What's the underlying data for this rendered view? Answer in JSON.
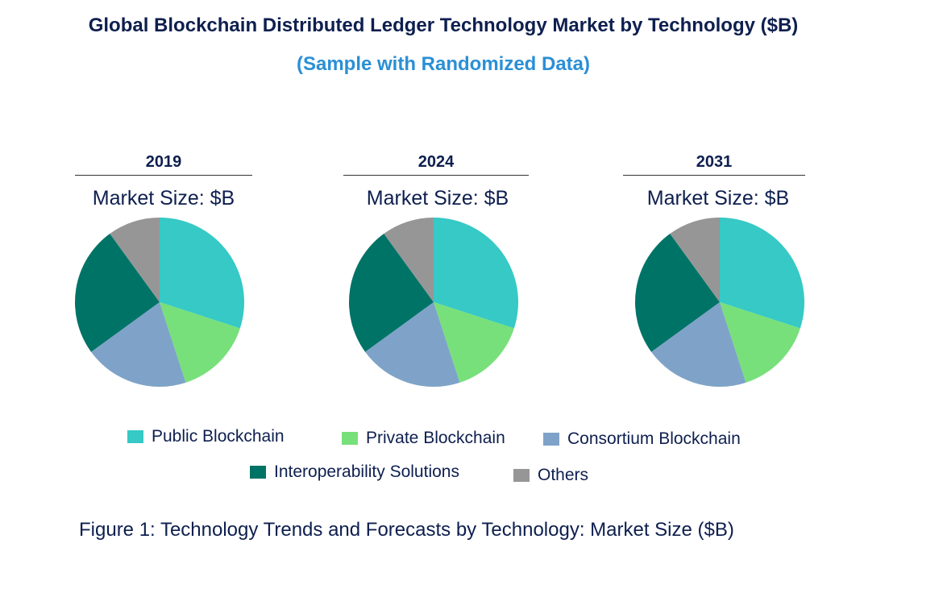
{
  "title": "Global Blockchain Distributed Ledger Technology Market by Technology ($B)",
  "subtitle": "(Sample with Randomized Data)",
  "caption": "Figure 1: Technology Trends and Forecasts by Technology: Market Size ($B)",
  "chart_data": [
    {
      "type": "pie",
      "title": "2019",
      "subtitle": "Market Size: $B",
      "categories": [
        "Public Blockchain",
        "Private Blockchain",
        "Consortium Blockchain",
        "Interoperability Solutions",
        "Others"
      ],
      "values": [
        30,
        15,
        20,
        25,
        10
      ]
    },
    {
      "type": "pie",
      "title": "2024",
      "subtitle": "Market Size: $B",
      "categories": [
        "Public Blockchain",
        "Private Blockchain",
        "Consortium Blockchain",
        "Interoperability Solutions",
        "Others"
      ],
      "values": [
        30,
        15,
        20,
        25,
        10
      ]
    },
    {
      "type": "pie",
      "title": "2031",
      "subtitle": "Market Size: $B",
      "categories": [
        "Public Blockchain",
        "Private Blockchain",
        "Consortium Blockchain",
        "Interoperability Solutions",
        "Others"
      ],
      "values": [
        30,
        15,
        20,
        25,
        10
      ]
    }
  ],
  "legend": [
    {
      "label": "Public Blockchain",
      "color": "#36c9c6"
    },
    {
      "label": "Private Blockchain",
      "color": "#77e07a"
    },
    {
      "label": "Consortium Blockchain",
      "color": "#7fa3c8"
    },
    {
      "label": "Interoperability Solutions",
      "color": "#007367"
    },
    {
      "label": "Others",
      "color": "#969696"
    }
  ]
}
